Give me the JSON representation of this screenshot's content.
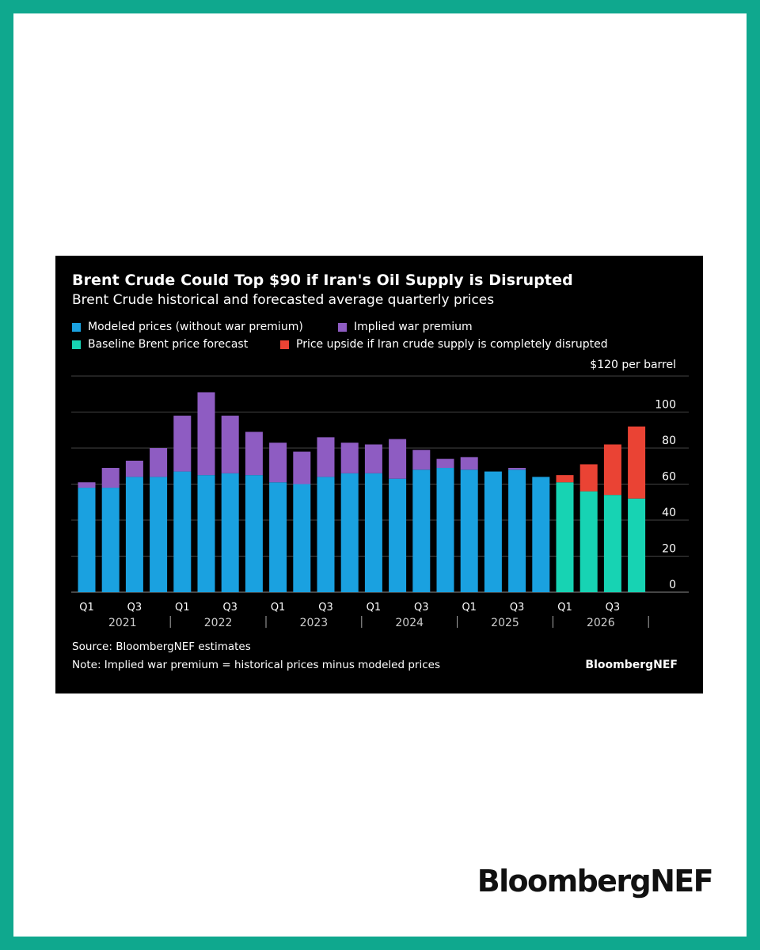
{
  "page": {
    "logo_text": "BloombergNEF",
    "frame_color": "#0fa88e"
  },
  "chart_data": {
    "type": "bar",
    "stacked": true,
    "title": "Brent Crude Could Top $90 if Iran's Oil Supply is Disrupted",
    "subtitle": "Brent Crude historical and forecasted average quarterly prices",
    "unit_label": "$120 per barrel",
    "ylim": [
      0,
      120
    ],
    "y_ticks": [
      "0",
      "20",
      "40",
      "60",
      "80",
      "100"
    ],
    "grid": true,
    "legend_position": "top-left",
    "categories": [
      "Q1 2021",
      "Q2 2021",
      "Q3 2021",
      "Q4 2021",
      "Q1 2022",
      "Q2 2022",
      "Q3 2022",
      "Q4 2022",
      "Q1 2023",
      "Q2 2023",
      "Q3 2023",
      "Q4 2023",
      "Q1 2024",
      "Q2 2024",
      "Q3 2024",
      "Q4 2024",
      "Q1 2025",
      "Q2 2025",
      "Q3 2025",
      "Q4 2025",
      "Q1 2026",
      "Q2 2026",
      "Q3 2026",
      "Q4 2026"
    ],
    "x_tick_labels": [
      "Q1",
      "",
      "Q3",
      "",
      "Q1",
      "",
      "Q3",
      "",
      "Q1",
      "",
      "Q3",
      "",
      "Q1",
      "",
      "Q3",
      "",
      "Q1",
      "",
      "Q3",
      "",
      "Q1",
      "",
      "Q3",
      ""
    ],
    "year_labels": [
      "2021",
      "2022",
      "2023",
      "2024",
      "2025",
      "2026"
    ],
    "series": [
      {
        "name": "Modeled prices (without war premium)",
        "color": "#1aa1e0",
        "values": [
          58,
          58,
          64,
          64,
          67,
          65,
          66,
          65,
          61,
          60,
          64,
          66,
          66,
          63,
          68,
          69,
          68,
          67,
          68,
          64,
          0,
          0,
          0,
          0
        ]
      },
      {
        "name": "Implied war premium",
        "color": "#8e5cc2",
        "values": [
          3,
          11,
          9,
          16,
          31,
          46,
          32,
          24,
          22,
          18,
          22,
          17,
          16,
          22,
          11,
          5,
          7,
          0,
          1,
          0,
          0,
          0,
          0,
          0
        ]
      },
      {
        "name": "Baseline Brent price forecast",
        "color": "#17d3b3",
        "values": [
          0,
          0,
          0,
          0,
          0,
          0,
          0,
          0,
          0,
          0,
          0,
          0,
          0,
          0,
          0,
          0,
          0,
          0,
          0,
          0,
          61,
          56,
          54,
          52
        ]
      },
      {
        "name": "Price upside if Iran crude supply is completely disrupted",
        "color": "#ea4334",
        "values": [
          0,
          0,
          0,
          0,
          0,
          0,
          0,
          0,
          0,
          0,
          0,
          0,
          0,
          0,
          0,
          0,
          0,
          0,
          0,
          0,
          4,
          15,
          28,
          40
        ]
      }
    ],
    "source": "Source: BloombergNEF estimates",
    "note": "Note: Implied war premium = historical prices minus modeled prices",
    "brand": "BloombergNEF"
  }
}
